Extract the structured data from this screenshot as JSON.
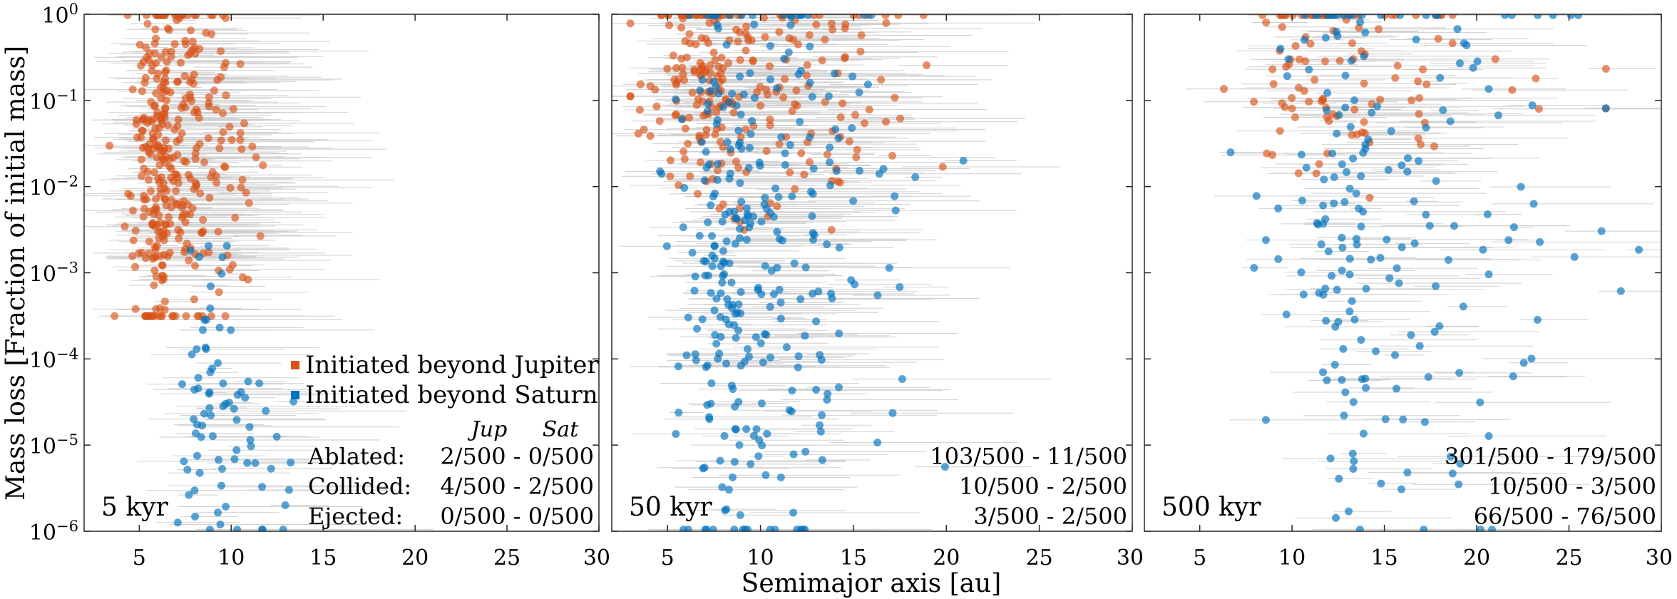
{
  "figure": {
    "ylabel": "Mass loss [Fraction of initial mass]",
    "xlabel": "Semimajor axis [au]",
    "legend": [
      {
        "label": "Initiated beyond Jupiter",
        "color": "#d95319"
      },
      {
        "label": "Initiated beyond Saturn",
        "color": "#0072bd"
      }
    ],
    "row_labels": [
      "Ablated:",
      "Collided:",
      "Ejected:"
    ],
    "col_headers": [
      "Jup",
      "Sat"
    ]
  },
  "chart_data": [
    {
      "type": "scatter",
      "panel_label": "5 kyr",
      "xlim": [
        2,
        30
      ],
      "ylim": [
        1e-06,
        1
      ],
      "yscale": "log",
      "xticks": [
        5,
        10,
        15,
        20,
        25,
        30
      ],
      "yticks": [
        1e-06,
        1e-05,
        0.0001,
        0.001,
        0.01,
        0.1,
        1
      ],
      "ytick_labels": [
        "10^-6",
        "10^-5",
        "10^-4",
        "10^-3",
        "10^-2",
        "10^-1",
        "10^0"
      ],
      "stats": [
        "2/500 - 0/500",
        "4/500 - 2/500",
        "0/500 - 0/500"
      ],
      "series": [
        {
          "name": "Initiated beyond Jupiter",
          "color": "#d95319",
          "x_range": [
            3,
            13
          ],
          "y_range": [
            0.0003,
            1
          ],
          "x_center": 6.5,
          "log_y_center": -1.7,
          "count": 380,
          "seed": 11
        },
        {
          "name": "Initiated beyond Saturn",
          "color": "#0072bd",
          "x_range": [
            6,
            15
          ],
          "y_range": [
            1e-06,
            0.003
          ],
          "x_center": 9,
          "log_y_center": -4.5,
          "count": 80,
          "seed": 12
        }
      ]
    },
    {
      "type": "scatter",
      "panel_label": "50 kyr",
      "xlim": [
        2,
        30
      ],
      "ylim": [
        1e-06,
        1
      ],
      "yscale": "log",
      "xticks": [
        5,
        10,
        15,
        20,
        25,
        30
      ],
      "yticks": [
        1e-06,
        1e-05,
        0.0001,
        0.001,
        0.01,
        0.1,
        1
      ],
      "ytick_labels": [
        "10^-6",
        "10^-5",
        "10^-4",
        "10^-3",
        "10^-2",
        "10^-1",
        "10^0"
      ],
      "stats": [
        "103/500 - 11/500",
        "10/500 - 2/500",
        "3/500 - 2/500"
      ],
      "series": [
        {
          "name": "Initiated beyond Jupiter",
          "color": "#d95319",
          "x_range": [
            3,
            29
          ],
          "y_range": [
            0.003,
            1
          ],
          "x_center": 8,
          "log_y_center": -0.8,
          "count": 260,
          "seed": 21
        },
        {
          "name": "Initiated beyond Saturn",
          "color": "#0072bd",
          "x_range": [
            3,
            22
          ],
          "y_range": [
            1e-06,
            1
          ],
          "x_center": 9,
          "log_y_center": -2.8,
          "count": 320,
          "seed": 22
        }
      ]
    },
    {
      "type": "scatter",
      "panel_label": "500 kyr",
      "xlim": [
        2,
        30
      ],
      "ylim": [
        1e-06,
        1
      ],
      "yscale": "log",
      "xticks": [
        5,
        10,
        15,
        20,
        25,
        30
      ],
      "yticks": [
        1e-06,
        1e-05,
        0.0001,
        0.001,
        0.01,
        0.1,
        1
      ],
      "ytick_labels": [
        "10^-6",
        "10^-5",
        "10^-4",
        "10^-3",
        "10^-2",
        "10^-1",
        "10^0"
      ],
      "stats": [
        "301/500 - 179/500",
        "10/500 - 3/500",
        "66/500 - 76/500"
      ],
      "series": [
        {
          "name": "Initiated beyond Jupiter",
          "color": "#d95319",
          "x_range": [
            3,
            27
          ],
          "y_range": [
            0.005,
            1
          ],
          "x_center": 12,
          "log_y_center": -0.6,
          "count": 110,
          "seed": 31
        },
        {
          "name": "Initiated beyond Saturn",
          "color": "#0072bd",
          "x_range": [
            3,
            29
          ],
          "y_range": [
            1e-06,
            1
          ],
          "x_center": 14,
          "log_y_center": -2.5,
          "count": 200,
          "seed": 32
        }
      ]
    }
  ]
}
